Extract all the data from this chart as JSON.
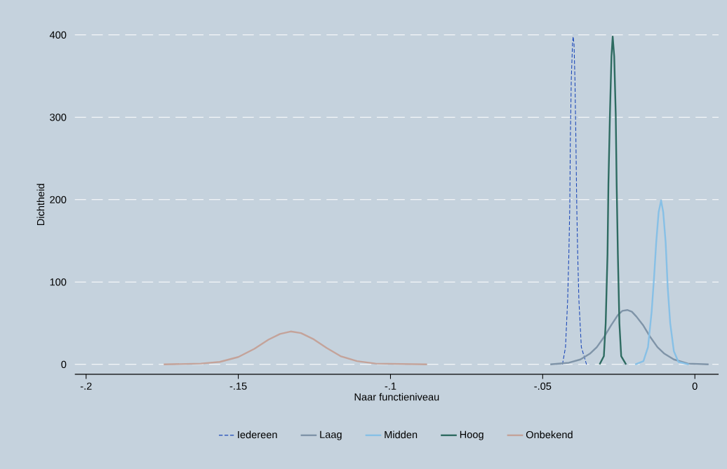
{
  "chart_data": {
    "type": "line",
    "xlabel": "Naar functieniveau",
    "ylabel": "Dichtheid",
    "xlim": [
      -0.2037,
      0.0078
    ],
    "ylim": [
      -12,
      400
    ],
    "xticks": [
      {
        "value": -0.2,
        "label": "-.2"
      },
      {
        "value": -0.15,
        "label": "-.15"
      },
      {
        "value": -0.1,
        "label": "-.1"
      },
      {
        "value": -0.05,
        "label": "-.05"
      },
      {
        "value": 0,
        "label": "0"
      }
    ],
    "yticks": [
      0,
      100,
      200,
      300,
      400
    ],
    "grid": "y",
    "legend": "bottom",
    "marker": "none",
    "line_style": "solid",
    "series": [
      {
        "name": "Iedereen",
        "color": "#1a47b8",
        "line_style": "dashed",
        "x": [
          -0.0435,
          -0.0425,
          -0.0418,
          -0.0414,
          -0.0411,
          -0.0409,
          -0.0406,
          -0.0402,
          -0.04,
          -0.0397,
          -0.0394,
          -0.0391,
          -0.0388,
          -0.0385,
          -0.0381,
          -0.0373,
          -0.0356
        ],
        "values": [
          0,
          21,
          78,
          134,
          191,
          276,
          346,
          389,
          398,
          389,
          346,
          276,
          191,
          134,
          78,
          21,
          0
        ]
      },
      {
        "name": "Laag",
        "color": "#7f94a8",
        "x": [
          -0.0475,
          -0.0414,
          -0.0376,
          -0.0345,
          -0.0322,
          -0.0299,
          -0.0276,
          -0.0253,
          -0.0238,
          -0.0222,
          -0.0207,
          -0.0192,
          -0.0169,
          -0.0146,
          -0.0123,
          -0.01,
          -0.0069,
          -0.0023,
          0.0045
        ],
        "values": [
          0,
          2,
          6,
          13,
          21,
          33,
          47,
          60,
          65,
          66,
          64,
          58,
          47,
          33,
          21,
          13,
          6,
          1,
          0
        ]
      },
      {
        "name": "Midden",
        "color": "#87c0e6",
        "x": [
          -0.0196,
          -0.0169,
          -0.0154,
          -0.0142,
          -0.0134,
          -0.0127,
          -0.0119,
          -0.0111,
          -0.0104,
          -0.0096,
          -0.0089,
          -0.0081,
          -0.0069,
          -0.0054,
          -0.002
        ],
        "values": [
          0,
          4,
          21,
          64,
          106,
          148,
          185,
          199,
          185,
          148,
          92,
          50,
          16,
          3,
          0
        ]
      },
      {
        "name": "Hoog",
        "color": "#2e6b61",
        "x": [
          -0.0313,
          -0.0299,
          -0.0293,
          -0.0287,
          -0.0284,
          -0.0279,
          -0.0274,
          -0.027,
          -0.0265,
          -0.026,
          -0.0257,
          -0.0253,
          -0.0248,
          -0.0242,
          -0.0226
        ],
        "values": [
          0,
          10,
          50,
          134,
          219,
          304,
          374,
          398,
          374,
          304,
          219,
          134,
          50,
          10,
          0
        ]
      },
      {
        "name": "Onbekend",
        "color": "#c4a39a",
        "x": [
          -0.1745,
          -0.1623,
          -0.1561,
          -0.15,
          -0.1447,
          -0.1401,
          -0.1363,
          -0.1328,
          -0.1294,
          -0.1255,
          -0.121,
          -0.1164,
          -0.111,
          -0.1049,
          -0.088
        ],
        "values": [
          0,
          1,
          3,
          9,
          19,
          30,
          37,
          40,
          38,
          31,
          20,
          10,
          4,
          1,
          0
        ]
      }
    ]
  }
}
